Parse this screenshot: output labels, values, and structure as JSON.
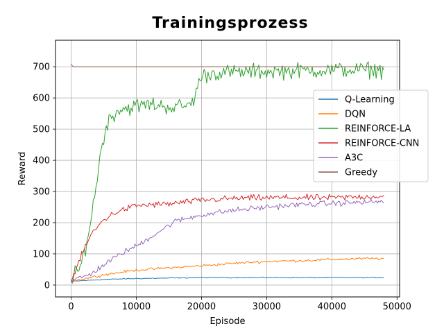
{
  "chart_data": {
    "type": "line",
    "title": "Trainingsprozess",
    "xlabel": "Episode",
    "ylabel": "Reward",
    "xlim": [
      -2400,
      50400
    ],
    "ylim": [
      -38,
      785
    ],
    "xticks": [
      0,
      10000,
      20000,
      30000,
      40000,
      50000
    ],
    "xtick_labels": [
      "0",
      "10000",
      "20000",
      "30000",
      "40000",
      "50000"
    ],
    "yticks": [
      0,
      100,
      200,
      300,
      400,
      500,
      600,
      700
    ],
    "ytick_labels": [
      "0",
      "100",
      "200",
      "300",
      "400",
      "500",
      "600",
      "700"
    ],
    "grid": true,
    "legend_position": "right",
    "x_step": 200,
    "x_end": 48000,
    "series": [
      {
        "name": "Q-Learning",
        "color": "#1f77b4",
        "noise": 1.5,
        "keypoints": [
          [
            0,
            12
          ],
          [
            5000,
            18
          ],
          [
            10000,
            21
          ],
          [
            20000,
            24
          ],
          [
            30000,
            24
          ],
          [
            48000,
            24
          ]
        ]
      },
      {
        "name": "DQN",
        "color": "#ff7f0e",
        "noise": 4,
        "keypoints": [
          [
            0,
            12
          ],
          [
            5000,
            33
          ],
          [
            10000,
            48
          ],
          [
            15000,
            55
          ],
          [
            20000,
            62
          ],
          [
            25000,
            70
          ],
          [
            30000,
            76
          ],
          [
            35000,
            78
          ],
          [
            40000,
            82
          ],
          [
            45000,
            85
          ],
          [
            48000,
            85
          ]
        ]
      },
      {
        "name": "REINFORCE-LA",
        "color": "#2ca02c",
        "noise": 25,
        "keypoints": [
          [
            0,
            12
          ],
          [
            1500,
            60
          ],
          [
            3000,
            200
          ],
          [
            4500,
            420
          ],
          [
            5500,
            520
          ],
          [
            7000,
            560
          ],
          [
            9000,
            570
          ],
          [
            12000,
            580
          ],
          [
            16000,
            570
          ],
          [
            18500,
            580
          ],
          [
            20000,
            670
          ],
          [
            22000,
            680
          ],
          [
            30000,
            685
          ],
          [
            40000,
            690
          ],
          [
            48000,
            690
          ]
        ]
      },
      {
        "name": "REINFORCE-CNN",
        "color": "#d62728",
        "noise": 10,
        "keypoints": [
          [
            0,
            12
          ],
          [
            1500,
            90
          ],
          [
            3000,
            160
          ],
          [
            5000,
            210
          ],
          [
            7000,
            235
          ],
          [
            10000,
            255
          ],
          [
            15000,
            260
          ],
          [
            20000,
            272
          ],
          [
            25000,
            278
          ],
          [
            30000,
            280
          ],
          [
            40000,
            280
          ],
          [
            48000,
            285
          ]
        ]
      },
      {
        "name": "A3C",
        "color": "#9467bd",
        "noise": 9,
        "keypoints": [
          [
            0,
            12
          ],
          [
            3000,
            35
          ],
          [
            5000,
            65
          ],
          [
            8000,
            105
          ],
          [
            10000,
            125
          ],
          [
            13000,
            165
          ],
          [
            16000,
            205
          ],
          [
            20000,
            225
          ],
          [
            25000,
            240
          ],
          [
            30000,
            250
          ],
          [
            35000,
            258
          ],
          [
            40000,
            262
          ],
          [
            48000,
            268
          ]
        ]
      },
      {
        "name": "Greedy",
        "color": "#8c564b",
        "noise": 0,
        "keypoints": [
          [
            0,
            708
          ],
          [
            300,
            700
          ],
          [
            48000,
            700
          ]
        ]
      }
    ]
  }
}
